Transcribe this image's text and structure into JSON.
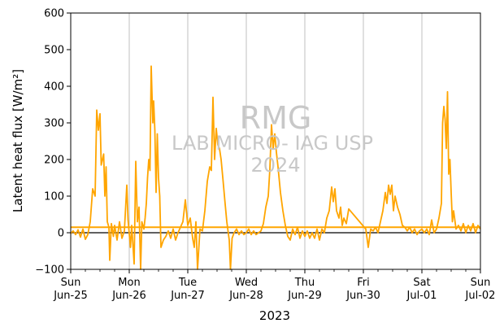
{
  "chart_data": {
    "type": "line",
    "ylabel": "Latent heat flux",
    "ylabel_units": "[W/m²]",
    "xlabel": "2023",
    "ylim": [
      -100,
      600
    ],
    "yticks": [
      -100,
      0,
      100,
      200,
      300,
      400,
      500,
      600
    ],
    "xlim": [
      "2023-06-25",
      "2023-07-02"
    ],
    "x_ticks": [
      {
        "date": "2023-06-25",
        "day": "Sun",
        "label": "Jun-25"
      },
      {
        "date": "2023-06-26",
        "day": "Mon",
        "label": "Jun-26"
      },
      {
        "date": "2023-06-27",
        "day": "Tue",
        "label": "Jun-27"
      },
      {
        "date": "2023-06-28",
        "day": "Wed",
        "label": "Jun-28"
      },
      {
        "date": "2023-06-29",
        "day": "Thu",
        "label": "Jun-29"
      },
      {
        "date": "2023-06-30",
        "day": "Fri",
        "label": "Jun-30"
      },
      {
        "date": "2023-07-01",
        "day": "Sat",
        "label": "Jul-01"
      },
      {
        "date": "2023-07-02",
        "day": "Sun",
        "label": "Jul-02"
      }
    ],
    "grid": "vertical at day ticks",
    "colors": {
      "series": "#FFA500",
      "mean_line": "#FFA500",
      "zero_line": "#000000",
      "grid": "#b0b0b0"
    },
    "mean_line_value": 15,
    "zero_line_value": 0,
    "series": [
      {
        "points": [
          [
            "2023-06-25 00:00",
            -2
          ],
          [
            "2023-06-25 01:00",
            5
          ],
          [
            "2023-06-25 02:00",
            -5
          ],
          [
            "2023-06-25 03:00",
            8
          ],
          [
            "2023-06-25 04:00",
            -12
          ],
          [
            "2023-06-25 05:00",
            10
          ],
          [
            "2023-06-25 06:00",
            -18
          ],
          [
            "2023-06-25 07:00",
            -5
          ],
          [
            "2023-06-25 08:00",
            30
          ],
          [
            "2023-06-25 09:00",
            120
          ],
          [
            "2023-06-25 10:00",
            100
          ],
          [
            "2023-06-25 10:40",
            335
          ],
          [
            "2023-06-25 11:20",
            280
          ],
          [
            "2023-06-25 12:00",
            325
          ],
          [
            "2023-06-25 12:30",
            185
          ],
          [
            "2023-06-25 13:30",
            215
          ],
          [
            "2023-06-25 14:00",
            100
          ],
          [
            "2023-06-25 14:30",
            180
          ],
          [
            "2023-06-25 15:00",
            30
          ],
          [
            "2023-06-25 15:40",
            15
          ],
          [
            "2023-06-25 16:00",
            -75
          ],
          [
            "2023-06-25 16:40",
            25
          ],
          [
            "2023-06-25 17:30",
            -10
          ],
          [
            "2023-06-25 18:00",
            20
          ],
          [
            "2023-06-25 19:00",
            -20
          ],
          [
            "2023-06-25 20:00",
            30
          ],
          [
            "2023-06-25 21:00",
            -15
          ],
          [
            "2023-06-25 22:00",
            5
          ],
          [
            "2023-06-25 23:00",
            130
          ],
          [
            "2023-06-25 23:30",
            35
          ],
          [
            "2023-06-26 00:30",
            -40
          ],
          [
            "2023-06-26 01:00",
            20
          ],
          [
            "2023-06-26 02:00",
            -85
          ],
          [
            "2023-06-26 02:40",
            195
          ],
          [
            "2023-06-26 03:20",
            30
          ],
          [
            "2023-06-26 04:00",
            70
          ],
          [
            "2023-06-26 04:40",
            -100
          ],
          [
            "2023-06-26 05:10",
            30
          ],
          [
            "2023-06-26 06:00",
            10
          ],
          [
            "2023-06-26 06:30",
            40
          ],
          [
            "2023-06-26 07:00",
            80
          ],
          [
            "2023-06-26 07:30",
            150
          ],
          [
            "2023-06-26 08:00",
            200
          ],
          [
            "2023-06-26 08:30",
            170
          ],
          [
            "2023-06-26 09:00",
            455
          ],
          [
            "2023-06-26 09:40",
            300
          ],
          [
            "2023-06-26 10:00",
            360
          ],
          [
            "2023-06-26 10:30",
            280
          ],
          [
            "2023-06-26 11:00",
            110
          ],
          [
            "2023-06-26 11:30",
            270
          ],
          [
            "2023-06-26 12:00",
            150
          ],
          [
            "2023-06-26 12:30",
            100
          ],
          [
            "2023-06-26 13:00",
            -40
          ],
          [
            "2023-06-26 14:00",
            -20
          ],
          [
            "2023-06-26 15:00",
            -10
          ],
          [
            "2023-06-26 16:00",
            5
          ],
          [
            "2023-06-26 17:00",
            -15
          ],
          [
            "2023-06-26 18:00",
            10
          ],
          [
            "2023-06-26 19:00",
            -20
          ],
          [
            "2023-06-26 20:00",
            0
          ],
          [
            "2023-06-26 21:00",
            15
          ],
          [
            "2023-06-26 22:00",
            30
          ],
          [
            "2023-06-26 23:00",
            90
          ],
          [
            "2023-06-27 00:00",
            20
          ],
          [
            "2023-06-27 01:00",
            40
          ],
          [
            "2023-06-27 02:00",
            -15
          ],
          [
            "2023-06-27 02:40",
            -40
          ],
          [
            "2023-06-27 03:20",
            30
          ],
          [
            "2023-06-27 04:00",
            -100
          ],
          [
            "2023-06-27 05:00",
            10
          ],
          [
            "2023-06-27 06:00",
            5
          ],
          [
            "2023-06-27 07:00",
            60
          ],
          [
            "2023-06-27 08:00",
            140
          ],
          [
            "2023-06-27 09:00",
            180
          ],
          [
            "2023-06-27 09:40",
            170
          ],
          [
            "2023-06-27 10:20",
            370
          ],
          [
            "2023-06-27 11:00",
            200
          ],
          [
            "2023-06-27 11:40",
            285
          ],
          [
            "2023-06-27 12:20",
            240
          ],
          [
            "2023-06-27 13:00",
            230
          ],
          [
            "2023-06-27 13:40",
            200
          ],
          [
            "2023-06-27 14:30",
            140
          ],
          [
            "2023-06-27 15:10",
            90
          ],
          [
            "2023-06-27 16:00",
            30
          ],
          [
            "2023-06-27 17:00",
            -20
          ],
          [
            "2023-06-27 17:30",
            -100
          ],
          [
            "2023-06-27 18:10",
            -15
          ],
          [
            "2023-06-27 19:00",
            0
          ],
          [
            "2023-06-27 20:00",
            10
          ],
          [
            "2023-06-27 21:00",
            -5
          ],
          [
            "2023-06-27 22:00",
            5
          ],
          [
            "2023-06-27 23:00",
            -5
          ],
          [
            "2023-06-28 00:00",
            0
          ],
          [
            "2023-06-28 01:00",
            10
          ],
          [
            "2023-06-28 02:00",
            -5
          ],
          [
            "2023-06-28 03:00",
            5
          ],
          [
            "2023-06-28 04:00",
            -5
          ],
          [
            "2023-06-28 05:00",
            0
          ],
          [
            "2023-06-28 06:00",
            5
          ],
          [
            "2023-06-28 07:00",
            25
          ],
          [
            "2023-06-28 08:00",
            70
          ],
          [
            "2023-06-28 09:00",
            100
          ],
          [
            "2023-06-28 09:40",
            175
          ],
          [
            "2023-06-28 10:20",
            295
          ],
          [
            "2023-06-28 11:00",
            230
          ],
          [
            "2023-06-28 11:40",
            270
          ],
          [
            "2023-06-28 12:20",
            220
          ],
          [
            "2023-06-28 13:00",
            180
          ],
          [
            "2023-06-28 14:00",
            110
          ],
          [
            "2023-06-28 15:00",
            60
          ],
          [
            "2023-06-28 16:00",
            20
          ],
          [
            "2023-06-28 17:00",
            -10
          ],
          [
            "2023-06-28 18:00",
            -20
          ],
          [
            "2023-06-28 19:00",
            10
          ],
          [
            "2023-06-28 20:00",
            -5
          ],
          [
            "2023-06-28 21:00",
            15
          ],
          [
            "2023-06-28 22:00",
            -15
          ],
          [
            "2023-06-28 23:00",
            5
          ],
          [
            "2023-06-29 00:00",
            -10
          ],
          [
            "2023-06-29 01:00",
            5
          ],
          [
            "2023-06-29 02:00",
            -15
          ],
          [
            "2023-06-29 03:00",
            0
          ],
          [
            "2023-06-29 04:00",
            -15
          ],
          [
            "2023-06-29 05:00",
            10
          ],
          [
            "2023-06-29 06:00",
            -20
          ],
          [
            "2023-06-29 07:00",
            10
          ],
          [
            "2023-06-29 08:00",
            0
          ],
          [
            "2023-06-29 09:00",
            40
          ],
          [
            "2023-06-29 10:00",
            60
          ],
          [
            "2023-06-29 11:00",
            125
          ],
          [
            "2023-06-29 11:40",
            85
          ],
          [
            "2023-06-29 12:20",
            120
          ],
          [
            "2023-06-29 13:00",
            60
          ],
          [
            "2023-06-29 14:00",
            40
          ],
          [
            "2023-06-29 14:40",
            70
          ],
          [
            "2023-06-29 15:20",
            20
          ],
          [
            "2023-06-29 16:00",
            40
          ],
          [
            "2023-06-29 17:00",
            25
          ],
          [
            "2023-06-29 18:00",
            65
          ],
          [
            "2023-06-30 01:00",
            10
          ],
          [
            "2023-06-30 02:00",
            -40
          ],
          [
            "2023-06-30 03:00",
            10
          ],
          [
            "2023-06-30 04:00",
            5
          ],
          [
            "2023-06-30 05:00",
            15
          ],
          [
            "2023-06-30 06:00",
            0
          ],
          [
            "2023-06-30 07:00",
            30
          ],
          [
            "2023-06-30 08:00",
            60
          ],
          [
            "2023-06-30 09:00",
            110
          ],
          [
            "2023-06-30 09:40",
            80
          ],
          [
            "2023-06-30 10:20",
            130
          ],
          [
            "2023-06-30 11:00",
            105
          ],
          [
            "2023-06-30 11:40",
            130
          ],
          [
            "2023-06-30 12:20",
            60
          ],
          [
            "2023-06-30 13:00",
            100
          ],
          [
            "2023-06-30 14:00",
            70
          ],
          [
            "2023-06-30 15:00",
            50
          ],
          [
            "2023-06-30 16:00",
            20
          ],
          [
            "2023-06-30 17:00",
            15
          ],
          [
            "2023-06-30 18:00",
            5
          ],
          [
            "2023-06-30 19:00",
            15
          ],
          [
            "2023-06-30 20:00",
            0
          ],
          [
            "2023-06-30 21:00",
            10
          ],
          [
            "2023-06-30 22:00",
            -5
          ],
          [
            "2023-06-30 23:00",
            5
          ],
          [
            "2023-07-01 00:00",
            10
          ],
          [
            "2023-07-01 01:00",
            0
          ],
          [
            "2023-07-01 02:00",
            10
          ],
          [
            "2023-07-01 03:00",
            -5
          ],
          [
            "2023-07-01 04:00",
            35
          ],
          [
            "2023-07-01 05:00",
            0
          ],
          [
            "2023-07-01 06:00",
            10
          ],
          [
            "2023-07-01 07:00",
            40
          ],
          [
            "2023-07-01 08:00",
            80
          ],
          [
            "2023-07-01 08:30",
            300
          ],
          [
            "2023-07-01 09:00",
            345
          ],
          [
            "2023-07-01 09:30",
            310
          ],
          [
            "2023-07-01 10:00",
            230
          ],
          [
            "2023-07-01 10:30",
            385
          ],
          [
            "2023-07-01 11:00",
            160
          ],
          [
            "2023-07-01 11:30",
            200
          ],
          [
            "2023-07-01 12:00",
            110
          ],
          [
            "2023-07-01 12:30",
            30
          ],
          [
            "2023-07-01 13:00",
            60
          ],
          [
            "2023-07-01 14:00",
            10
          ],
          [
            "2023-07-01 15:00",
            20
          ],
          [
            "2023-07-01 16:00",
            5
          ],
          [
            "2023-07-01 17:00",
            25
          ],
          [
            "2023-07-01 18:00",
            0
          ],
          [
            "2023-07-01 19:00",
            20
          ],
          [
            "2023-07-01 20:00",
            5
          ],
          [
            "2023-07-01 21:00",
            25
          ],
          [
            "2023-07-01 22:00",
            0
          ],
          [
            "2023-07-01 23:00",
            20
          ],
          [
            "2023-07-02 00:00",
            10
          ]
        ]
      }
    ]
  },
  "watermark": {
    "line1": "RMG",
    "line2": "LAB MICRO- IAG USP",
    "line3": "2024"
  }
}
